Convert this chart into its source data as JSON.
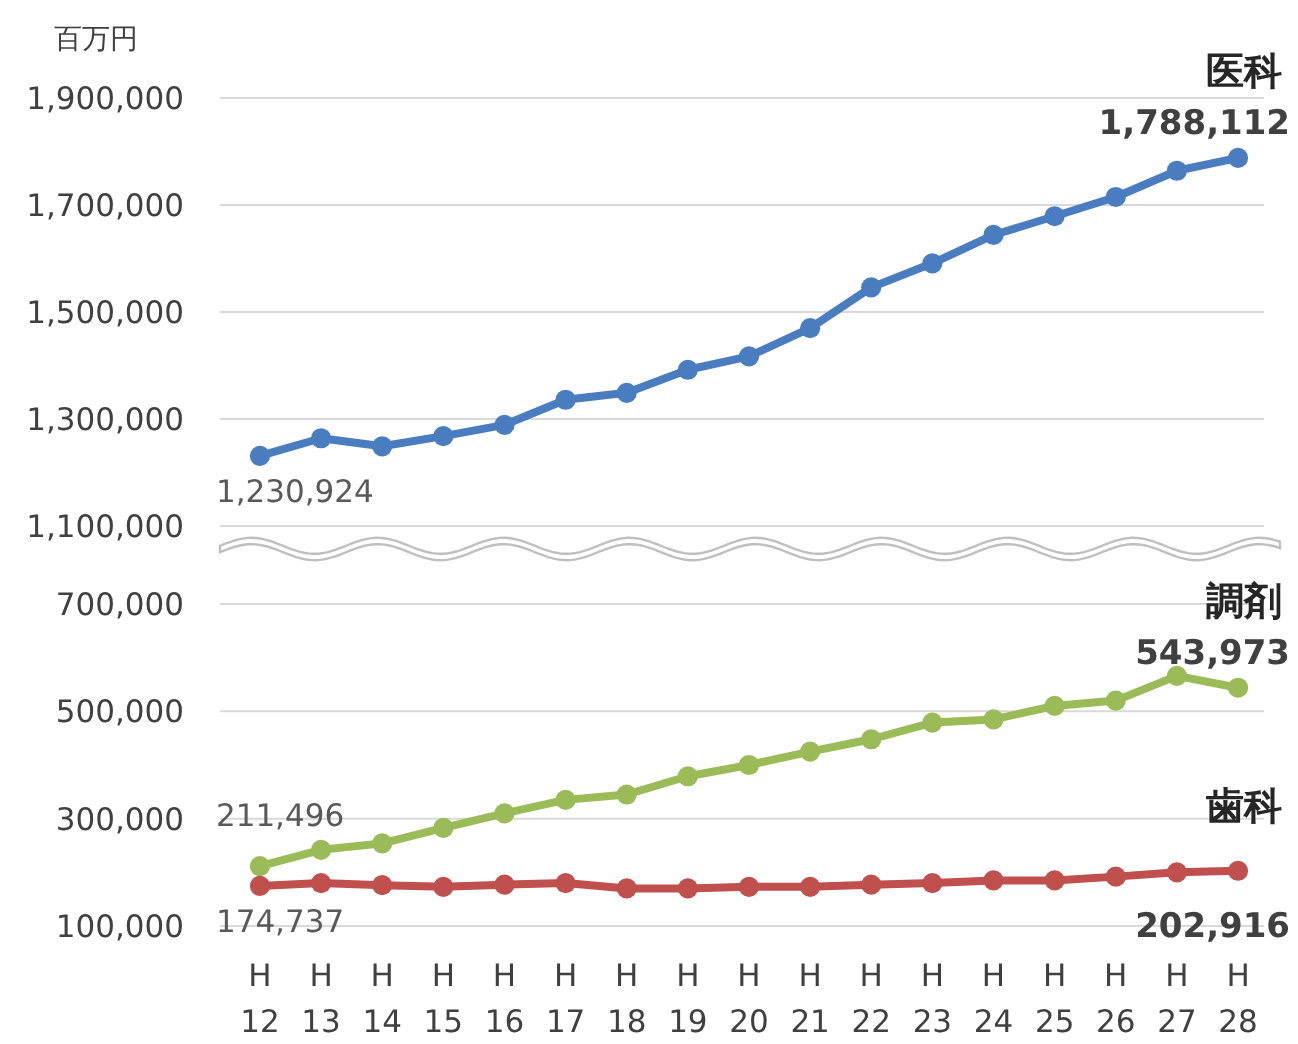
{
  "chart_data": [
    {
      "type": "line",
      "ylabel": "百万円",
      "categories": [
        null,
        null,
        null,
        null,
        null,
        null,
        null,
        null,
        null,
        null,
        null,
        null,
        null,
        null,
        null,
        null,
        null
      ],
      "ylim": [
        1100000,
        1900000
      ],
      "yticks": [
        {
          "value": 1100000,
          "label": "1,100,000"
        },
        {
          "value": 1300000,
          "label": "1,300,000"
        },
        {
          "value": 1500000,
          "label": "1,500,000"
        },
        {
          "value": 1700000,
          "label": "1,700,000"
        },
        {
          "value": 1900000,
          "label": "1,900,000"
        }
      ],
      "grid": "y",
      "marker": "circle",
      "series": [
        {
          "name": "医科",
          "color": "#4a7dbf",
          "values": [
            1230924,
            1264000,
            1249000,
            1268000,
            1289000,
            1336000,
            1349000,
            1392000,
            1417000,
            1470000,
            1546000,
            1591000,
            1644000,
            1679000,
            1715000,
            1764000,
            1788112
          ],
          "value_labels": [
            "1,230,924",
            null,
            null,
            null,
            null,
            null,
            null,
            null,
            null,
            null,
            null,
            null,
            null,
            null,
            null,
            null,
            "1,788,112"
          ]
        }
      ]
    },
    {
      "type": "line",
      "categories": [
        "H\n12",
        "H\n13",
        "H\n14",
        "H\n15",
        "H\n16",
        "H\n17",
        "H\n18",
        "H\n19",
        "H\n20",
        "H\n21",
        "H\n22",
        "H\n23",
        "H\n24",
        "H\n25",
        "H\n26",
        "H\n27",
        "H\n28"
      ],
      "ylim": [
        100000,
        700000
      ],
      "yticks": [
        {
          "value": 100000,
          "label": "100,000"
        },
        {
          "value": 300000,
          "label": "300,000"
        },
        {
          "value": 500000,
          "label": "500,000"
        },
        {
          "value": 700000,
          "label": "700,000"
        }
      ],
      "grid": "y",
      "marker": "circle",
      "series": [
        {
          "name": "調剤",
          "color": "#9bbb59",
          "values": [
            211496,
            242000,
            254000,
            283000,
            310000,
            335000,
            345000,
            379000,
            400000,
            425000,
            448000,
            479000,
            485000,
            510000,
            520000,
            566000,
            543973
          ],
          "value_labels": [
            "211,496",
            null,
            null,
            null,
            null,
            null,
            null,
            null,
            null,
            null,
            null,
            null,
            null,
            null,
            null,
            null,
            "543,973"
          ]
        },
        {
          "name": "歯科",
          "color": "#c0504d",
          "values": [
            174737,
            180000,
            176000,
            173000,
            177000,
            180000,
            170000,
            170000,
            173000,
            173000,
            177000,
            180000,
            185000,
            185000,
            192000,
            200000,
            202916
          ],
          "value_labels": [
            "174,737",
            null,
            null,
            null,
            null,
            null,
            null,
            null,
            null,
            null,
            null,
            null,
            null,
            null,
            null,
            null,
            "202,916"
          ]
        }
      ]
    }
  ]
}
